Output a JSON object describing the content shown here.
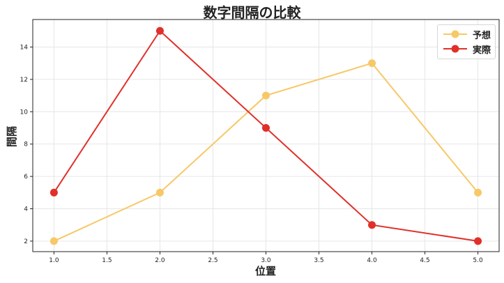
{
  "chart_data": {
    "type": "line",
    "title": "数字間隔の比較",
    "xlabel": "位置",
    "ylabel": "間隔",
    "x": [
      1,
      2,
      3,
      4,
      5
    ],
    "series": [
      {
        "name": "予想",
        "values": [
          2,
          5,
          11,
          13,
          5
        ],
        "color": "#F7C867"
      },
      {
        "name": "実際",
        "values": [
          5,
          15,
          9,
          3,
          2
        ],
        "color": "#E0302A"
      }
    ],
    "xticks": [
      "1.0",
      "1.5",
      "2.0",
      "2.5",
      "3.0",
      "3.5",
      "4.0",
      "4.5",
      "5.0"
    ],
    "yticks": [
      "2",
      "4",
      "6",
      "8",
      "10",
      "12",
      "14"
    ],
    "xlim": [
      0.8,
      5.2
    ],
    "ylim": [
      1.35,
      15.7
    ],
    "grid": true,
    "legend_position": "upper right"
  }
}
